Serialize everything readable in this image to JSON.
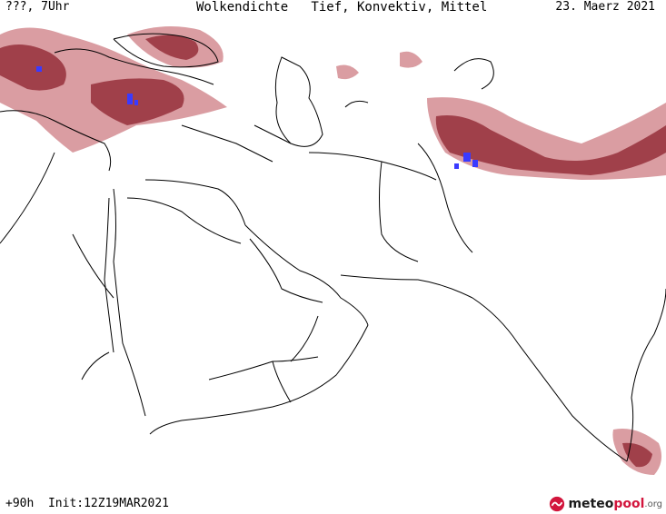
{
  "header": {
    "left": "???, 7Uhr",
    "center": "Wolkendichte   Tief, Konvektiv, Mittel",
    "right": "23. Maerz 2021"
  },
  "footer": {
    "left": "+90h  Init:12Z19MAR2021"
  },
  "logo": {
    "part1": "meteo",
    "part2": "pool",
    "part3": ".org"
  },
  "colors": {
    "cloud": "#a0404a",
    "cloud_light": "#d48c92",
    "convective": "#3a3aff",
    "border": "#000000",
    "logo_red": "#d2153c"
  }
}
